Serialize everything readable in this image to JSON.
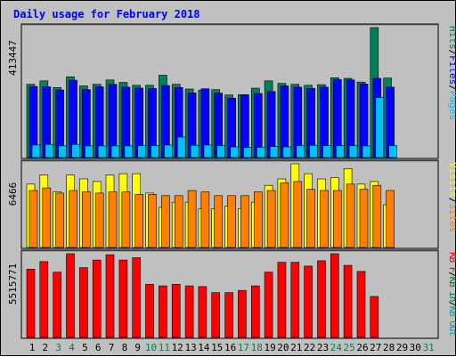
{
  "chart_data": {
    "type": "bar",
    "title": "Daily usage for February 2018",
    "colors": {
      "hits": "#00805c",
      "files": "#0000ff",
      "pages": "#00c0ff",
      "visits": "#ffff00",
      "sites": "#ff8000",
      "kbin": "#008040",
      "kbout": "#00a0a0",
      "kbf": "#ff0000",
      "background": "#c0c0c0",
      "plot": "#c0c0c0",
      "weekend_label": "#00805c",
      "weekday_label": "#000000",
      "title_color": "#0000ff"
    },
    "x": [
      "1",
      "2",
      "3",
      "4",
      "5",
      "6",
      "7",
      "8",
      "9",
      "10",
      "11",
      "12",
      "13",
      "14",
      "15",
      "16",
      "17",
      "18",
      "19",
      "20",
      "21",
      "22",
      "23",
      "24",
      "25",
      "26",
      "27",
      "28",
      "29",
      "30",
      "31"
    ],
    "weekend_days": [
      "3",
      "4",
      "10",
      "11",
      "17",
      "18",
      "24",
      "25",
      "31"
    ],
    "panels": [
      {
        "id": "top",
        "max_label": "413447",
        "ymax": 413447,
        "legend": [
          {
            "text": "Hits",
            "color": "#00805c"
          },
          {
            "text": "Files",
            "color": "#0000ff"
          },
          {
            "text": "Pages",
            "color": "#00c0ff"
          }
        ],
        "separator_color": "#000000",
        "series": [
          {
            "name": "Hits",
            "color": "#00805c",
            "values": [
              233000,
              244000,
              223000,
              257000,
              228000,
              233000,
              247000,
              239000,
              230000,
              230000,
              262000,
              233000,
              218000,
              214000,
              216000,
              199000,
              200000,
              221000,
              244000,
              236000,
              233000,
              230000,
              232000,
              254000,
              252000,
              240000,
              413447,
              253000,
              null,
              null,
              null
            ]
          },
          {
            "name": "Files",
            "color": "#0000ff",
            "values": [
              226000,
              225000,
              215000,
              246000,
              216000,
              225000,
              233000,
              224000,
              221000,
              220000,
              229000,
              223000,
              206000,
              219000,
              205000,
              189000,
              200000,
              204000,
              210000,
              228000,
              224000,
              220000,
              224000,
              248000,
              247000,
              234000,
              252000,
              224000,
              null,
              null,
              null
            ]
          },
          {
            "name": "Pages",
            "color": "#00c0ff",
            "values": [
              40000,
              42000,
              37000,
              42000,
              37000,
              37000,
              37000,
              37000,
              38000,
              38000,
              40000,
              65000,
              39000,
              40000,
              38000,
              34000,
              32000,
              33000,
              35000,
              34000,
              38000,
              39000,
              38000,
              38000,
              38000,
              37000,
              191000,
              38000,
              null,
              null,
              null
            ]
          }
        ]
      },
      {
        "id": "middle",
        "max_label": "6466",
        "ymax": 6466,
        "legend": [
          {
            "text": "Visits",
            "color": "#ffff00"
          },
          {
            "text": "Sites",
            "color": "#ff8000"
          }
        ],
        "separator_color": "#ff8000",
        "series": [
          {
            "name": "Visits",
            "color": "#ffff00",
            "values": [
              4900,
              5600,
              4300,
              5600,
              5300,
              5100,
              5600,
              5700,
              5700,
              4200,
              3100,
              3500,
              3500,
              3000,
              3000,
              3200,
              3000,
              3500,
              4800,
              5300,
              6466,
              5700,
              5300,
              5400,
              6100,
              4900,
              5100,
              3300,
              null,
              null,
              null
            ]
          },
          {
            "name": "Sites",
            "color": "#ff8000",
            "values": [
              4400,
              4600,
              4200,
              4400,
              4300,
              4200,
              4300,
              4300,
              4100,
              4100,
              4000,
              4000,
              4400,
              4300,
              4000,
              4000,
              4000,
              4300,
              4400,
              5000,
              5100,
              4500,
              4400,
              4400,
              4900,
              4500,
              4800,
              4400,
              null,
              null,
              null
            ]
          }
        ]
      },
      {
        "id": "bottom",
        "max_label": "5515771",
        "ymax": 5515771,
        "legend": [
          {
            "text": "KB F",
            "color": "#ff0000"
          },
          {
            "text": "KB In",
            "color": "#008040"
          },
          {
            "text": "KB Out",
            "color": "#00a0a0"
          }
        ],
        "separator_color": "#008040",
        "series": [
          {
            "name": "KB F",
            "color": "#ff0000",
            "values": [
              4500000,
              5000000,
              4300000,
              5515771,
              4600000,
              5100000,
              5450000,
              5100000,
              5250000,
              3500000,
              3400000,
              3500000,
              3400000,
              3350000,
              2950000,
              2950000,
              3100000,
              3400000,
              4300000,
              4950000,
              4950000,
              4700000,
              5050000,
              5515771,
              4750000,
              4350000,
              2700000,
              null,
              null,
              null,
              null
            ]
          }
        ]
      }
    ]
  }
}
